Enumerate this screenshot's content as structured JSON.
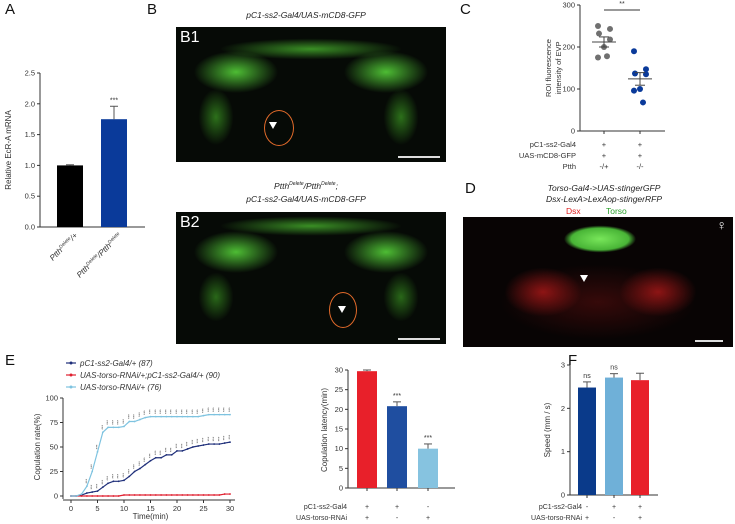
{
  "panels": {
    "A": {
      "label": "A"
    },
    "B": {
      "label": "B",
      "b1_id": "B1",
      "b1_title": "pC1-ss2-Gal4/UAS-mCD8-GFP",
      "b2_id": "B2",
      "b2_title_line1": "Ptth",
      "b2_title_sup1": "Delete",
      "b2_title_mid": "/Ptth",
      "b2_title_sup2": "Delete",
      "b2_title_end": ";",
      "b2_title_line2": "pC1-ss2-Gal4/UAS-mCD8-GFP"
    },
    "C": {
      "label": "C"
    },
    "D": {
      "label": "D",
      "title_line1": "Torso-Gal4->UAS-stingerGFP",
      "title_line2": "Dsx-LexA>LexAop-stingerRFP",
      "legend_dsx": "Dsx",
      "legend_torso": "Torso",
      "sex_symbol": "♀",
      "dsx_color": "#e02020",
      "torso_color": "#2aa02a"
    },
    "E": {
      "label": "E"
    },
    "F": {
      "label": "F"
    }
  },
  "chart_data": [
    {
      "id": "A",
      "type": "bar",
      "ylabel": "Relative EcR-A mRNA",
      "ylim": [
        0,
        2.5
      ],
      "yticks": [
        "0.0",
        "0.5",
        "1.0",
        "1.5",
        "2.0",
        "2.5"
      ],
      "categories": [
        {
          "base": "Ptth",
          "sup": "Delete",
          "rest": "/+"
        },
        {
          "base": "Ptth",
          "sup": "Delete",
          "rest": "/Ptth",
          "sup2": "Delete"
        }
      ],
      "values": [
        1.0,
        1.75
      ],
      "errors": [
        0.01,
        0.21
      ],
      "colors": [
        "#000000",
        "#0a3a9a"
      ],
      "annotations": [
        "",
        "***"
      ]
    },
    {
      "id": "C",
      "type": "scatter",
      "ylabel_line1": "ROI fluorescence",
      "ylabel_line2": "intensity of EVP",
      "ylim": [
        0,
        300
      ],
      "yticks": [
        "0",
        "100",
        "200",
        "300"
      ],
      "groups": [
        {
          "points": [
            250,
            243,
            232,
            218,
            200,
            175,
            178
          ],
          "mean": 212,
          "sem": 12,
          "color": "#707070"
        },
        {
          "points": [
            190,
            147,
            137,
            135,
            100,
            96,
            68
          ],
          "mean": 124,
          "sem": 15,
          "color": "#0a3a9a"
        }
      ],
      "significance": "**",
      "genotype_rows": [
        {
          "name": "pC1-ss2-Gal4",
          "values": [
            "+",
            "+"
          ]
        },
        {
          "name": "UAS-mCD8-GFP",
          "values": [
            "+",
            "+"
          ]
        },
        {
          "name": "Ptth",
          "values": [
            "-/+",
            "-/-"
          ]
        }
      ]
    },
    {
      "id": "E-curve",
      "type": "line",
      "xlabel": "Time(min)",
      "ylabel": "Copulation rate(%)",
      "xlim": [
        0,
        30
      ],
      "ylim": [
        0,
        100
      ],
      "xticks": [
        "0",
        "5",
        "10",
        "15",
        "20",
        "25",
        "30"
      ],
      "yticks": [
        "0",
        "25",
        "50",
        "75",
        "100"
      ],
      "x": [
        0,
        1,
        2,
        3,
        4,
        5,
        6,
        7,
        8,
        9,
        10,
        11,
        12,
        13,
        14,
        15,
        16,
        17,
        18,
        19,
        20,
        21,
        22,
        23,
        24,
        25,
        26,
        27,
        28,
        29,
        30
      ],
      "series": [
        {
          "name": "pC1-ss2-Gal4/+ (87)",
          "color": "#1f2f7a",
          "values": [
            0,
            0,
            1,
            3,
            4,
            5,
            9,
            13,
            15,
            15,
            16,
            20,
            25,
            28,
            32,
            36,
            39,
            39,
            42,
            42,
            46,
            46,
            48,
            50,
            51,
            52,
            53,
            53,
            53,
            54,
            55
          ]
        },
        {
          "name": "UAS-torso-RNAi/+;pC1-ss2-Gal4/+ (90)",
          "color": "#e02030",
          "values": [
            0,
            0,
            0,
            0,
            0,
            0,
            0,
            0,
            0,
            0,
            1,
            1,
            1,
            1,
            1,
            1,
            1,
            1,
            1,
            1,
            1,
            1,
            1,
            1,
            1,
            1,
            1,
            1,
            1,
            2,
            2
          ]
        },
        {
          "name": "UAS-torso-RNAi/+ (76)",
          "color": "#7ec3e0",
          "values": [
            0,
            0,
            2,
            10,
            25,
            45,
            65,
            70,
            70,
            70,
            71,
            76,
            76,
            78,
            80,
            81,
            81,
            81,
            81,
            81,
            81,
            81,
            81,
            81,
            81,
            82,
            83,
            83,
            83,
            83,
            83
          ]
        }
      ],
      "significance_marker": "***"
    },
    {
      "id": "E-bar",
      "type": "bar",
      "ylabel": "Copulation latency(min)",
      "ylim": [
        0,
        30
      ],
      "yticks": [
        "0",
        "5",
        "10",
        "15",
        "20",
        "25",
        "30"
      ],
      "values": [
        29.7,
        20.8,
        10.0
      ],
      "errors": [
        0.3,
        1.1,
        1.2
      ],
      "colors": [
        "#e8202a",
        "#1f4ea0",
        "#86c3e0"
      ],
      "annotations": [
        "",
        "***",
        "***"
      ],
      "genotype_rows": [
        {
          "name": "pC1-ss2-Gal4",
          "values": [
            "+",
            "+",
            "-"
          ]
        },
        {
          "name": "UAS-torso-RNAi",
          "values": [
            "+",
            "-",
            "+"
          ]
        }
      ]
    },
    {
      "id": "F",
      "type": "bar",
      "ylabel": "Speed (mm / s)",
      "ylim": [
        0,
        3
      ],
      "yticks": [
        "0",
        "1",
        "2",
        "3"
      ],
      "values": [
        2.48,
        2.71,
        2.65
      ],
      "errors": [
        0.13,
        0.09,
        0.16
      ],
      "colors": [
        "#0a3a8a",
        "#6fb0d8",
        "#e8202a"
      ],
      "annotations": [
        "ns",
        "ns",
        ""
      ],
      "genotype_rows": [
        {
          "name": "pC1-ss2-Gal4",
          "values": [
            "-",
            "+",
            "+"
          ]
        },
        {
          "name": "UAS-torso-RNAi",
          "values": [
            "+",
            "-",
            "+"
          ]
        }
      ]
    }
  ]
}
